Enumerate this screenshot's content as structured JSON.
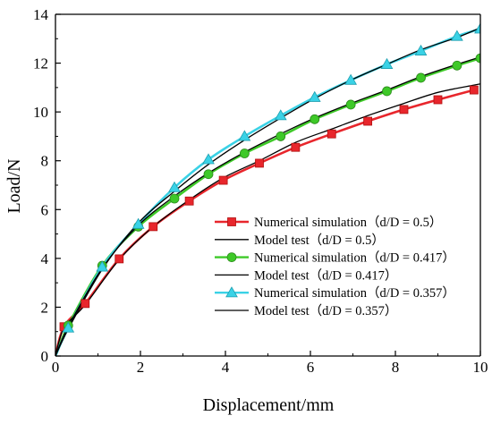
{
  "chart_data": {
    "type": "line",
    "xlabel": "Displacement/mm",
    "ylabel": "Load/N",
    "xlim": [
      0,
      10
    ],
    "ylim": [
      0,
      14
    ],
    "xticks": [
      "0",
      "2",
      "4",
      "6",
      "8",
      "10"
    ],
    "yticks": [
      "0",
      "2",
      "4",
      "6",
      "8",
      "10",
      "12",
      "14"
    ],
    "grid": false,
    "legend_position": "bottom-right",
    "series": [
      {
        "name": "Numerical simulation（d/D = 0.5）",
        "kind": "simulation",
        "color": "#e8262c",
        "marker": "square",
        "x": [
          0,
          0.2,
          0.7,
          1.5,
          2.3,
          3.15,
          3.95,
          4.8,
          5.65,
          6.5,
          7.35,
          8.2,
          9.0,
          9.85
        ],
        "y": [
          0,
          1.2,
          2.15,
          3.98,
          5.3,
          6.35,
          7.2,
          7.9,
          8.55,
          9.1,
          9.62,
          10.1,
          10.5,
          10.9
        ]
      },
      {
        "name": "Model test（d/D = 0.5）",
        "kind": "test",
        "color": "#000000",
        "marker": "none",
        "x": [
          0,
          0.2,
          0.7,
          1.5,
          2.3,
          3.15,
          3.95,
          4.8,
          5.65,
          6.5,
          7.35,
          8.2,
          9.0,
          9.85,
          10.0
        ],
        "y": [
          0,
          1.15,
          2.1,
          3.95,
          5.3,
          6.4,
          7.3,
          8.0,
          8.75,
          9.3,
          9.85,
          10.35,
          10.8,
          11.1,
          11.15
        ]
      },
      {
        "name": "Numerical simulation（d/D = 0.417）",
        "kind": "simulation",
        "color": "#3ec928",
        "marker": "circle",
        "x": [
          0,
          0.3,
          1.1,
          1.95,
          2.8,
          3.6,
          4.45,
          5.3,
          6.1,
          6.95,
          7.8,
          8.6,
          9.45,
          10.0
        ],
        "y": [
          0,
          1.25,
          3.7,
          5.3,
          6.45,
          7.45,
          8.3,
          9.0,
          9.7,
          10.3,
          10.85,
          11.4,
          11.9,
          12.2
        ]
      },
      {
        "name": "Model test（d/D = 0.417）",
        "kind": "test",
        "color": "#000000",
        "marker": "none",
        "x": [
          0,
          0.3,
          1.1,
          1.95,
          2.8,
          3.6,
          4.45,
          5.3,
          6.1,
          6.95,
          7.8,
          8.6,
          9.45,
          10.0
        ],
        "y": [
          0,
          1.2,
          3.6,
          5.35,
          6.55,
          7.5,
          8.35,
          9.1,
          9.75,
          10.35,
          10.9,
          11.45,
          11.95,
          12.25
        ]
      },
      {
        "name": "Numerical simulation（d/D = 0.357）",
        "kind": "simulation",
        "color": "#3ad2e6",
        "marker": "triangle",
        "x": [
          0,
          0.3,
          1.1,
          1.95,
          2.8,
          3.6,
          4.45,
          5.3,
          6.1,
          6.95,
          7.8,
          8.6,
          9.45,
          10.0
        ],
        "y": [
          0,
          1.15,
          3.65,
          5.4,
          6.9,
          8.05,
          9.0,
          9.85,
          10.6,
          11.3,
          11.95,
          12.5,
          13.1,
          13.4
        ]
      },
      {
        "name": "Model test（d/D = 0.357）",
        "kind": "test",
        "color": "#000000",
        "marker": "none",
        "x": [
          0,
          0.3,
          1.1,
          1.95,
          2.8,
          3.6,
          4.45,
          5.3,
          6.1,
          6.95,
          7.8,
          8.6,
          9.45,
          10.0
        ],
        "y": [
          0,
          1.1,
          3.55,
          5.45,
          6.75,
          7.85,
          8.85,
          9.75,
          10.55,
          11.3,
          11.95,
          12.55,
          13.05,
          13.45
        ]
      }
    ]
  }
}
